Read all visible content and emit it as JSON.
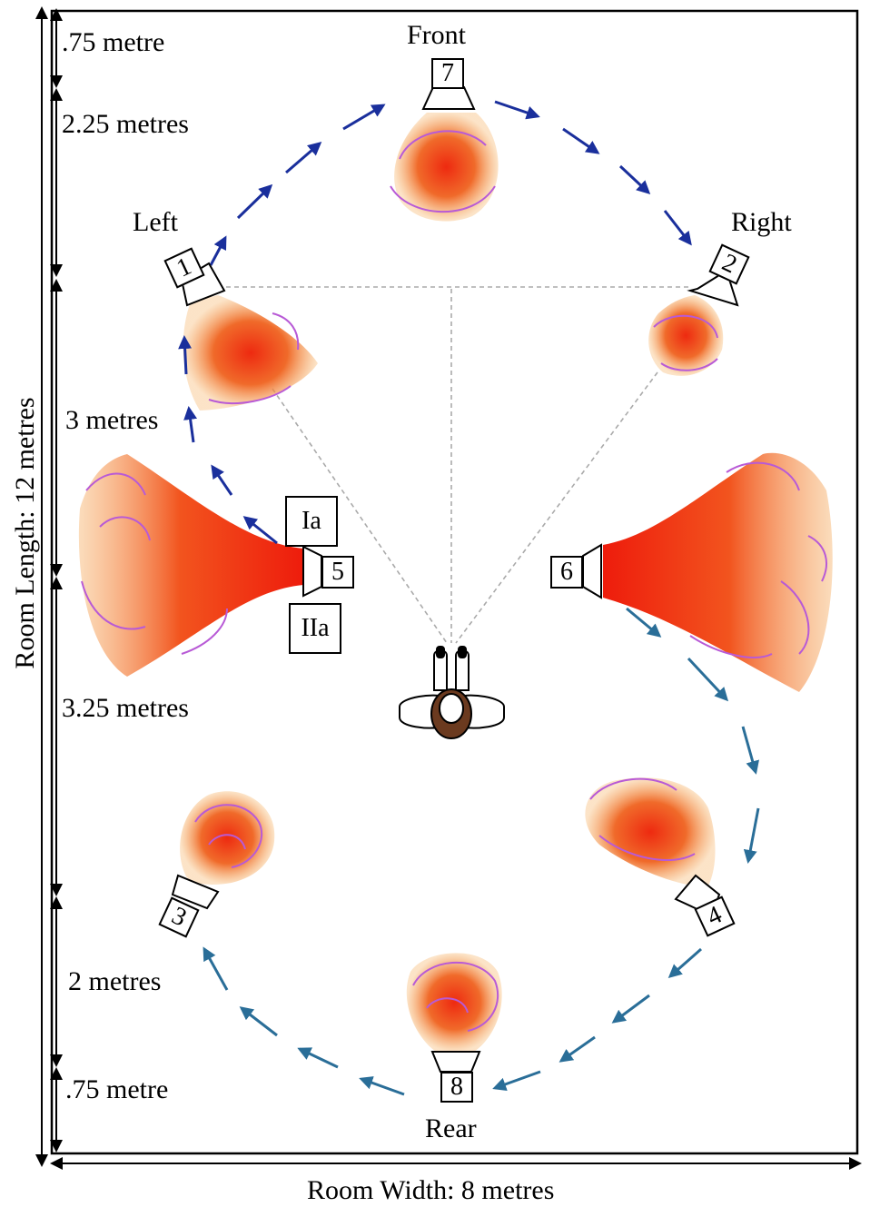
{
  "room": {
    "length_label": "Room Length: 12  metres",
    "width_label": "Room Width: 8 metres"
  },
  "segments": [
    {
      "label": ".75 metre"
    },
    {
      "label": "2.25 metres"
    },
    {
      "label": "3 metres"
    },
    {
      "label": "3.25 metres"
    },
    {
      "label": "2 metres"
    },
    {
      "label": ".75 metre"
    }
  ],
  "directions": {
    "front": "Front",
    "left": "Left",
    "right": "Right",
    "rear": "Rear"
  },
  "speakers": [
    {
      "number": "1"
    },
    {
      "number": "2"
    },
    {
      "number": "3"
    },
    {
      "number": "4"
    },
    {
      "number": "5"
    },
    {
      "number": "6"
    },
    {
      "number": "7"
    },
    {
      "number": "8"
    }
  ],
  "positions": {
    "upper": "Ia",
    "lower": "IIa"
  },
  "colors": {
    "outline": "#000000",
    "arrow_front": "#1a2f9c",
    "arrow_rear": "#2a6e98",
    "sound_core": "#ee2a10",
    "sound_edge": "#f4a24a",
    "swirl": "#b85ad6",
    "guide": "#aaaaaa",
    "hair": "#6b3a1f"
  }
}
